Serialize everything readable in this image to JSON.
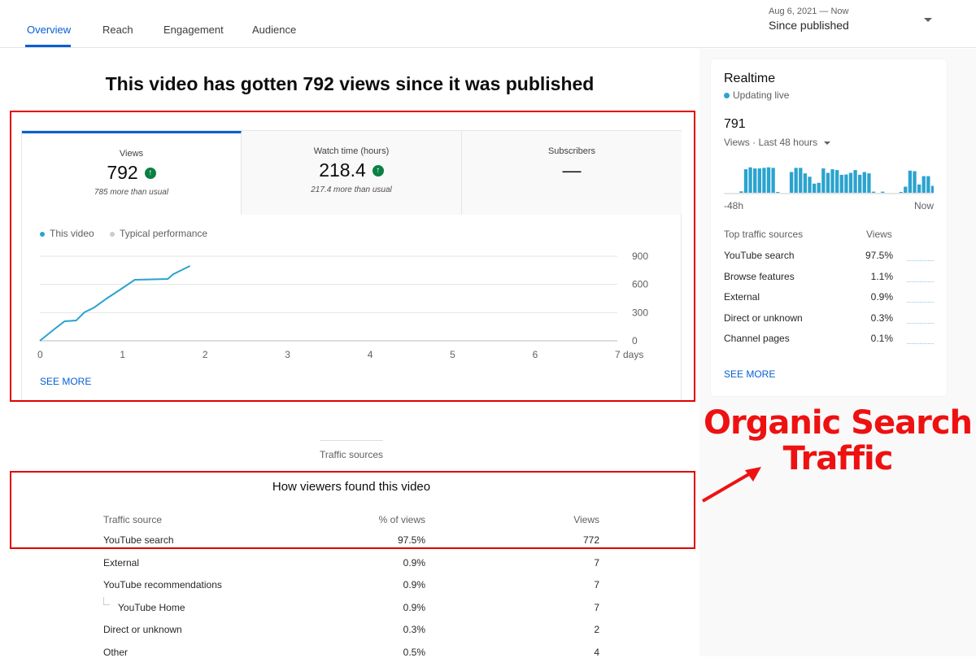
{
  "tabs": [
    {
      "label": "Overview",
      "active": true
    },
    {
      "label": "Reach"
    },
    {
      "label": "Engagement"
    },
    {
      "label": "Audience"
    }
  ],
  "date_range": {
    "sub": "Aug 6, 2021 — Now",
    "main": "Since published"
  },
  "headline": "This video has gotten 792 views since it was published",
  "metrics": [
    {
      "label": "Views",
      "value": "792",
      "trend": "up",
      "sub": "785 more than usual"
    },
    {
      "label": "Watch time (hours)",
      "value": "218.4",
      "trend": "up",
      "sub": "217.4 more than usual"
    },
    {
      "label": "Subscribers",
      "value": "—"
    }
  ],
  "legend": {
    "this_video": "This video",
    "typical": "Typical performance"
  },
  "see_more": "SEE MORE",
  "chart_data": {
    "type": "line",
    "x_ticks": [
      "0",
      "1",
      "2",
      "3",
      "4",
      "5",
      "6",
      "7 days"
    ],
    "y_ticks": [
      "0",
      "300",
      "600",
      "900"
    ],
    "xlim": [
      0,
      7
    ],
    "ylim": [
      0,
      900
    ],
    "grid": true,
    "series": [
      {
        "name": "This video",
        "color": "#2ba3cf",
        "x": [
          0,
          0.17,
          0.3,
          0.44,
          0.54,
          0.66,
          0.81,
          0.99,
          1.15,
          1.55,
          1.62,
          1.82
        ],
        "y": [
          0,
          120,
          208,
          216,
          303,
          355,
          450,
          554,
          649,
          658,
          710,
          796
        ]
      }
    ]
  },
  "traffic": {
    "section_label": "Traffic sources",
    "title": "How viewers found this video",
    "headers": [
      "Traffic source",
      "% of views",
      "Views"
    ],
    "rows": [
      {
        "source": "YouTube search",
        "pct": "97.5%",
        "views": "772"
      },
      {
        "source": "External",
        "pct": "0.9%",
        "views": "7"
      },
      {
        "source": "YouTube recommendations",
        "pct": "0.9%",
        "views": "7"
      },
      {
        "source": "YouTube Home",
        "pct": "0.9%",
        "views": "7",
        "child": true
      },
      {
        "source": "Direct or unknown",
        "pct": "0.3%",
        "views": "2"
      },
      {
        "source": "Other",
        "pct": "0.5%",
        "views": "4"
      }
    ]
  },
  "realtime": {
    "title": "Realtime",
    "status": "Updating live",
    "count": "791",
    "period": "Views · Last 48 hours",
    "x_start": "-48h",
    "x_end": "Now",
    "bars": [
      0,
      0,
      0.05,
      0.85,
      0.92,
      0.88,
      0.88,
      0.9,
      0.92,
      0.9,
      0.03,
      0,
      0,
      0.75,
      0.9,
      0.9,
      0.7,
      0.58,
      0.33,
      0.36,
      0.88,
      0.72,
      0.85,
      0.82,
      0.65,
      0.66,
      0.72,
      0.82,
      0.65,
      0.75,
      0.7,
      0.04,
      0,
      0.04,
      0,
      0,
      0,
      0.03,
      0.22,
      0.8,
      0.78,
      0.3,
      0.6,
      0.6,
      0.25,
      0.22
    ],
    "sources_header": "Top traffic sources",
    "views_header": "Views",
    "sources": [
      {
        "name": "YouTube search",
        "pct": "97.5%"
      },
      {
        "name": "Browse features",
        "pct": "1.1%"
      },
      {
        "name": "External",
        "pct": "0.9%"
      },
      {
        "name": "Direct or unknown",
        "pct": "0.3%"
      },
      {
        "name": "Channel pages",
        "pct": "0.1%"
      }
    ],
    "see_more": "SEE MORE"
  },
  "annotation": {
    "line1": "Organic Search",
    "line2": "Traffic",
    "color": "#ee1111"
  }
}
